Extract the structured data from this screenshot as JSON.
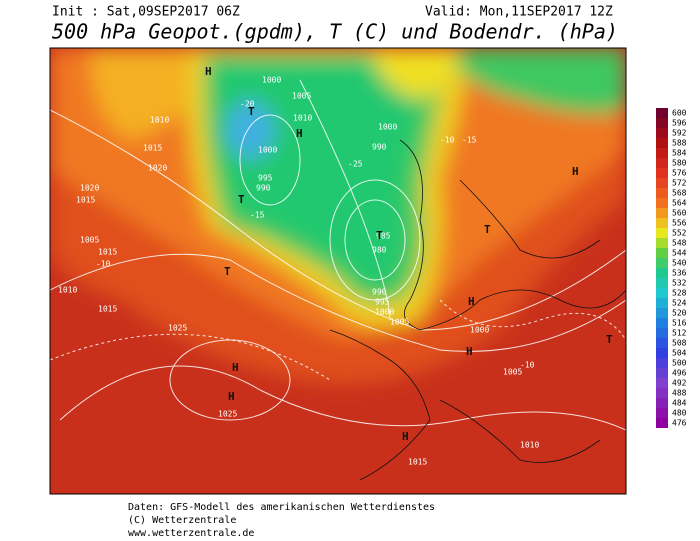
{
  "header": {
    "init": "Init : Sat,09SEP2017 06Z",
    "valid": "Valid: Mon,11SEP2017 12Z",
    "title": "500 hPa Geopot.(gpdm), T (C) und Bodendr. (hPa)"
  },
  "colorbar": {
    "labels": [
      600,
      596,
      592,
      588,
      584,
      580,
      576,
      572,
      568,
      564,
      560,
      556,
      552,
      548,
      544,
      540,
      536,
      532,
      528,
      524,
      520,
      516,
      512,
      508,
      504,
      500,
      496,
      492,
      488,
      484,
      480,
      476
    ]
  },
  "map": {
    "labels": [
      "1000",
      "1005",
      "1010",
      "1000",
      "995",
      "990",
      "T",
      "T",
      "H",
      "985",
      "980",
      "990",
      "995",
      "1000",
      "1005",
      "T",
      "H",
      "1015",
      "1010",
      "1005",
      "1025",
      "H",
      "1025",
      "H",
      "H",
      "1015",
      "1010",
      "1000",
      "1005",
      "H",
      "T",
      "1020",
      "1015",
      "1000",
      "990",
      "1010",
      "T",
      "1020",
      "1015",
      "H",
      "-10",
      "-15",
      "-20",
      "-25",
      "-10",
      "-15",
      "T",
      "H",
      "-10",
      "1015"
    ]
  },
  "footer": {
    "lines": [
      "Daten: GFS-Modell des amerikanischen Wetterdienstes",
      "(C) Wetterzentrale",
      "www.wetterzentrale.de"
    ]
  }
}
